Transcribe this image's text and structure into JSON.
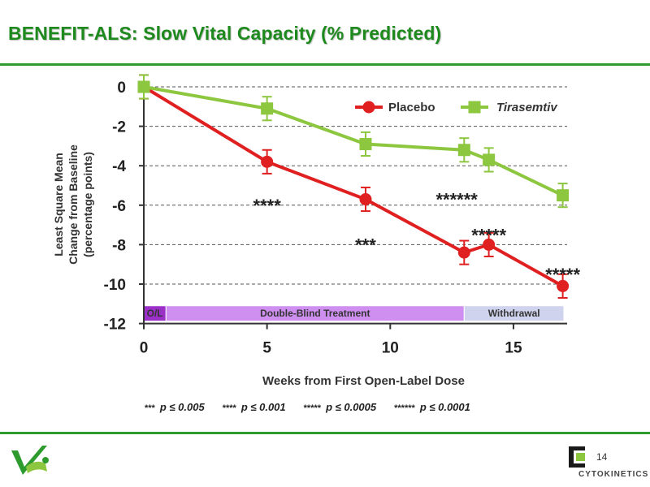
{
  "slide": {
    "title": "BENEFIT-ALS: Slow Vital Capacity (% Predicted)",
    "page_number": "14",
    "brand": "CYTOKINETICS",
    "colors": {
      "accent_green": "#2e9b2e",
      "title_green": "#1e8a1e"
    }
  },
  "footnotes": [
    {
      "stars": "***",
      "text": "p ≤ 0.005"
    },
    {
      "stars": "****",
      "text": "p ≤ 0.001"
    },
    {
      "stars": "*****",
      "text": "p ≤ 0.0005"
    },
    {
      "stars": "******",
      "text": "p ≤ 0.0001"
    }
  ],
  "chart_data": {
    "type": "line",
    "xlabel": "Weeks from First Open-Label Dose",
    "ylabel_lines": [
      "Least Square Mean",
      "Change from Baseline",
      "(percentage points)"
    ],
    "xlim": [
      0,
      17.5
    ],
    "ylim": [
      -12,
      0.5
    ],
    "xticks": [
      0,
      5,
      10,
      15
    ],
    "yticks": [
      0,
      -2,
      -4,
      -6,
      -8,
      -10,
      -12
    ],
    "grid": "horizontal dashed",
    "legend_position": "top-right",
    "series": [
      {
        "name": "Placebo",
        "color": "#e02020",
        "marker": "circle",
        "x": [
          0,
          5,
          9,
          13,
          14,
          17
        ],
        "y": [
          0,
          -3.8,
          -5.7,
          -8.4,
          -8.0,
          -10.1
        ],
        "err": [
          0.6,
          0.6,
          0.6,
          0.6,
          0.6,
          0.6
        ]
      },
      {
        "name": "Tirasemtiv",
        "color": "#8dc63f",
        "marker": "square",
        "italic": true,
        "x": [
          0,
          5,
          9,
          13,
          14,
          17
        ],
        "y": [
          0,
          -1.1,
          -2.9,
          -3.2,
          -3.7,
          -5.5
        ],
        "err": [
          0.6,
          0.6,
          0.6,
          0.6,
          0.6,
          0.6
        ]
      }
    ],
    "annotations": [
      {
        "text": "****",
        "x": 5,
        "y": -5.8
      },
      {
        "text": "***",
        "x": 9,
        "y": -7.8
      },
      {
        "text": "******",
        "x": 12.7,
        "y": -5.5
      },
      {
        "text": "*****",
        "x": 14,
        "y": -7.3
      },
      {
        "text": "*****",
        "x": 17,
        "y": -9.3
      }
    ],
    "phases": [
      {
        "label": "O/L",
        "start": 0,
        "end": 0.9,
        "color": "#9b30c8"
      },
      {
        "label": "Double-Blind Treatment",
        "start": 0.9,
        "end": 13,
        "color": "#cf8ff0"
      },
      {
        "label": "Withdrawal",
        "start": 13,
        "end": 17.5,
        "color": "#cfd3ee"
      }
    ],
    "phase_band_y": [
      -11.1,
      -12
    ]
  }
}
